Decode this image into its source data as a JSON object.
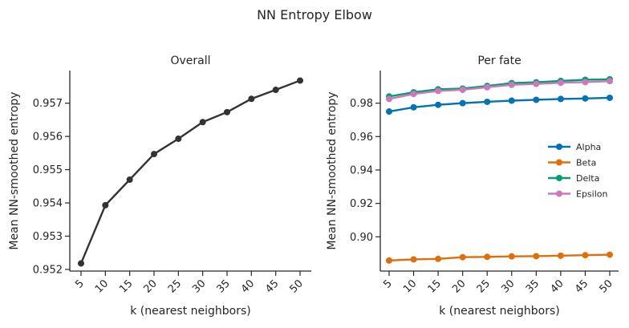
{
  "figure": {
    "title": "NN Entropy Elbow"
  },
  "chart_data": [
    {
      "type": "line",
      "title": "Overall",
      "xlabel": "k (nearest neighbors)",
      "ylabel": "Mean NN-smoothed entropy",
      "x": [
        5,
        10,
        15,
        20,
        25,
        30,
        35,
        40,
        45,
        50
      ],
      "xticks": [
        "5",
        "10",
        "15",
        "20",
        "25",
        "30",
        "35",
        "40",
        "45",
        "50"
      ],
      "yticks": [
        "0.952",
        "0.953",
        "0.954",
        "0.955",
        "0.956",
        "0.957"
      ],
      "ylim": [
        0.95195,
        0.95798
      ],
      "series": [
        {
          "color": "#333333",
          "values": [
            0.95218,
            0.95393,
            0.9547,
            0.95547,
            0.95593,
            0.95643,
            0.95673,
            0.95713,
            0.9574,
            0.95768
          ]
        }
      ]
    },
    {
      "type": "line",
      "title": "Per fate",
      "xlabel": "k (nearest neighbors)",
      "ylabel": "Mean NN-smoothed entropy",
      "x": [
        5,
        10,
        15,
        20,
        25,
        30,
        35,
        40,
        45,
        50
      ],
      "xticks": [
        "5",
        "10",
        "15",
        "20",
        "25",
        "30",
        "35",
        "40",
        "45",
        "50"
      ],
      "yticks": [
        "0.90",
        "0.92",
        "0.94",
        "0.96",
        "0.98"
      ],
      "ylim": [
        0.8795,
        0.9995
      ],
      "legend": "center-right",
      "series": [
        {
          "name": "Alpha",
          "color": "#0173b2",
          "values": [
            0.975,
            0.9775,
            0.979,
            0.98,
            0.9808,
            0.9815,
            0.982,
            0.9825,
            0.9828,
            0.9832
          ]
        },
        {
          "name": "Beta",
          "color": "#de6f0b",
          "values": [
            0.8858,
            0.8865,
            0.8868,
            0.8878,
            0.888,
            0.8883,
            0.8884,
            0.8887,
            0.889,
            0.8893
          ]
        },
        {
          "name": "Delta",
          "color": "#029e73",
          "values": [
            0.984,
            0.9865,
            0.9883,
            0.9887,
            0.9903,
            0.992,
            0.9925,
            0.9933,
            0.994,
            0.9943
          ]
        },
        {
          "name": "Epsilon",
          "color": "#cc78bc",
          "values": [
            0.9825,
            0.9855,
            0.9873,
            0.988,
            0.9895,
            0.991,
            0.9915,
            0.9922,
            0.9926,
            0.9932
          ]
        }
      ]
    }
  ]
}
